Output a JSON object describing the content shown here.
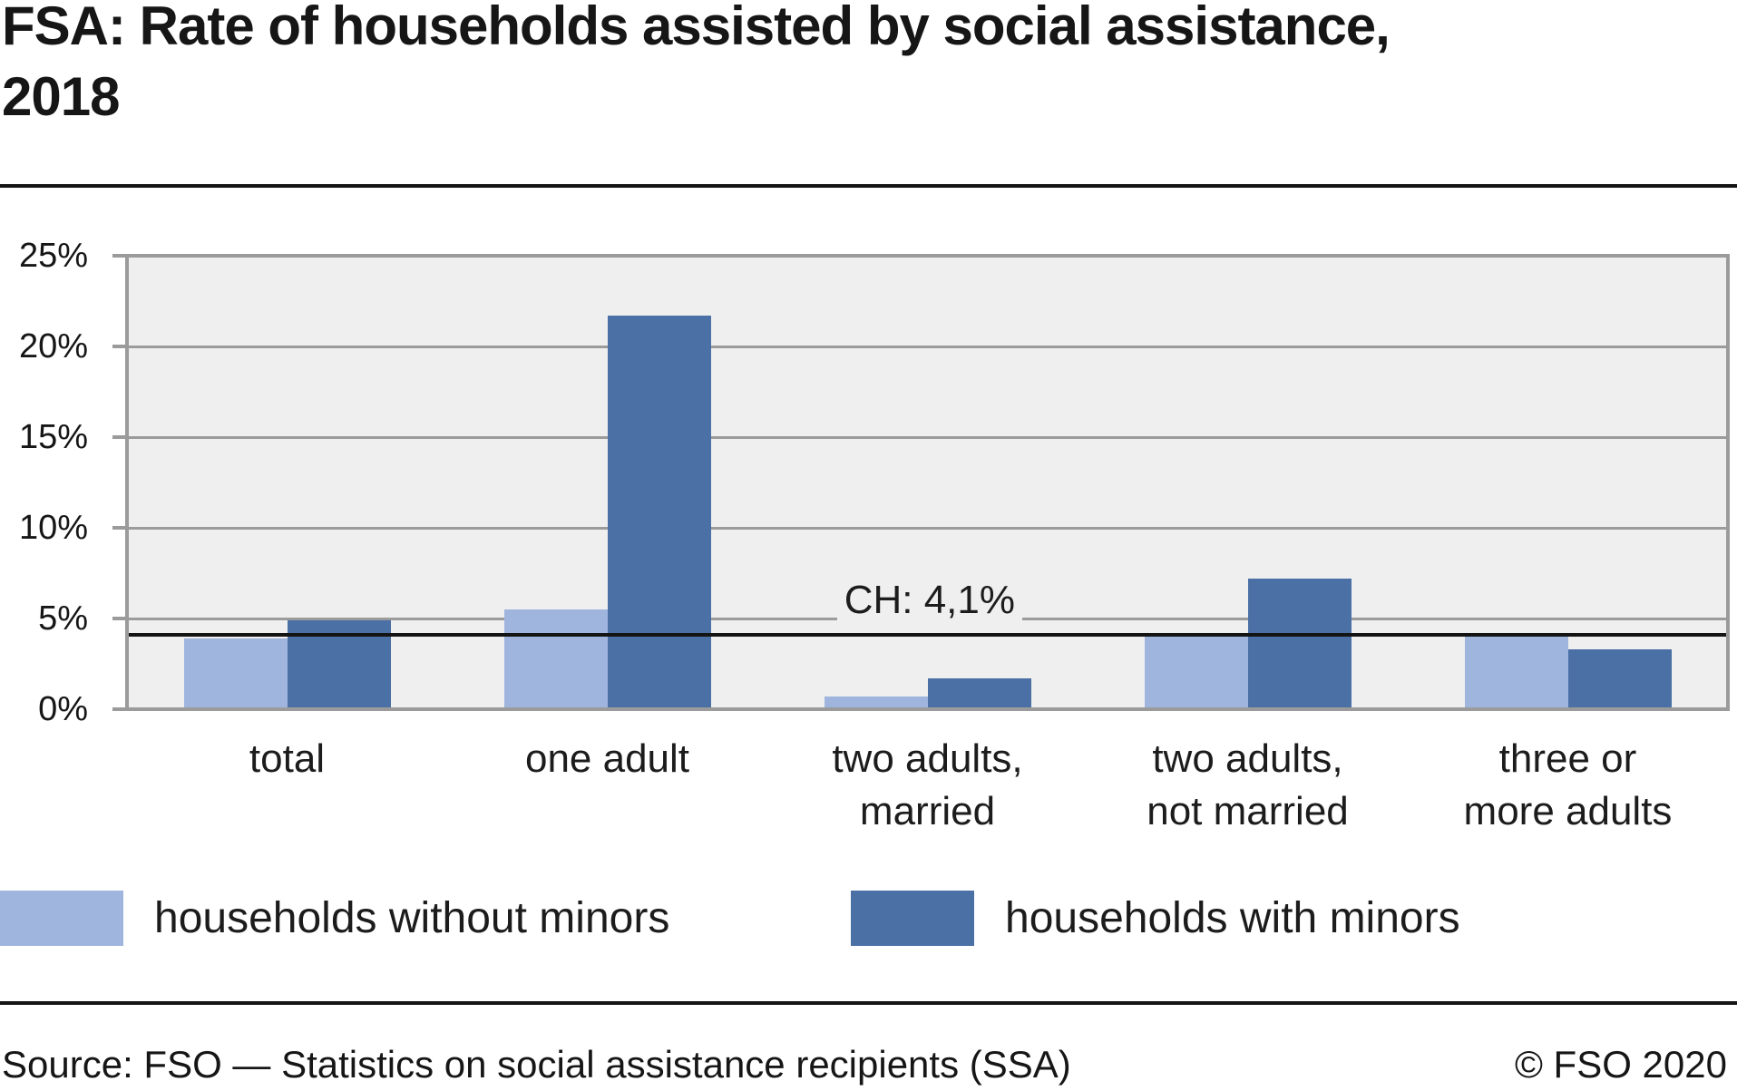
{
  "chart_data": {
    "type": "bar",
    "title": "FSA: Rate of households assisted by social assistance,\n2018",
    "categories": [
      "total",
      "one adult",
      "two adults,\nmarried",
      "two adults,\nnot married",
      "three or\nmore adults"
    ],
    "series": [
      {
        "name": "households without minors",
        "color": "#9FB5DE",
        "values": [
          3.9,
          5.5,
          0.7,
          4.1,
          4.1
        ]
      },
      {
        "name": "households with minors",
        "color": "#4B70A5",
        "values": [
          4.9,
          21.7,
          1.7,
          7.2,
          3.3
        ]
      }
    ],
    "xlabel": "",
    "ylabel": "",
    "ylim": [
      0,
      25
    ],
    "yticks": [
      {
        "value": 0,
        "label": "0%"
      },
      {
        "value": 5,
        "label": "5%"
      },
      {
        "value": 10,
        "label": "10%"
      },
      {
        "value": 15,
        "label": "15%"
      },
      {
        "value": 20,
        "label": "20%"
      },
      {
        "value": 25,
        "label": "25%"
      }
    ],
    "grid": true,
    "legend_position": "bottom",
    "reference_line": {
      "value": 4.1,
      "label": "CH: 4,1%"
    }
  },
  "colors": {
    "plot_background": "#EFEFEF",
    "gridline": "#9B9B9B",
    "reference_line": "#141414",
    "text": "#161616"
  },
  "footer": {
    "source": "Source: FSO — Statistics on social assistance recipients (SSA)",
    "copyright": "© FSO 2020"
  }
}
